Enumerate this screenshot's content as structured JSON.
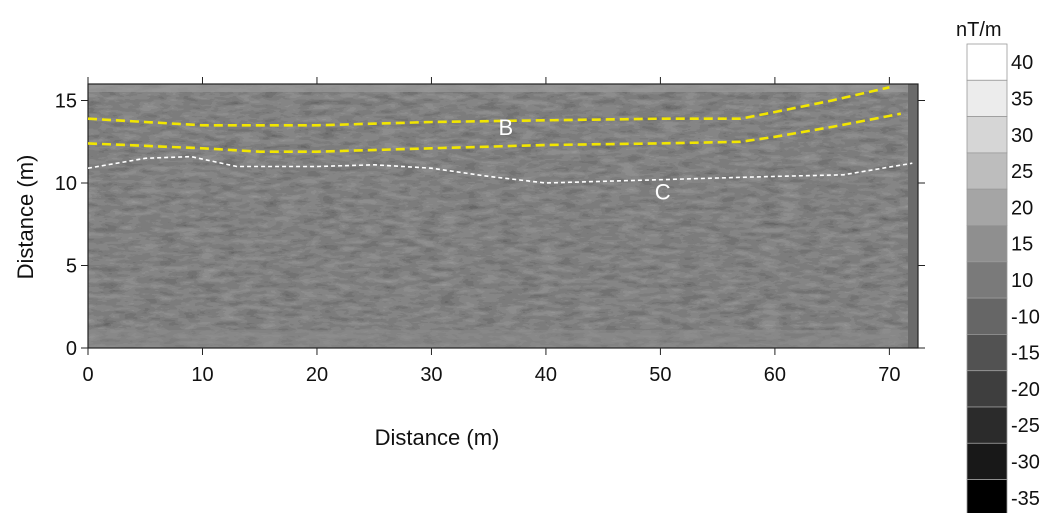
{
  "chart_data": {
    "type": "heatmap",
    "xlabel": "Distance (m)",
    "ylabel": "Distance (m)",
    "xlim": [
      0,
      72.5
    ],
    "ylim": [
      0,
      16
    ],
    "x_ticks": [
      "0",
      "10",
      "20",
      "30",
      "40",
      "50",
      "60",
      "70"
    ],
    "y_ticks": [
      "0",
      "5",
      "10",
      "15"
    ],
    "grid": false,
    "colorbar": {
      "unit": "nT/m",
      "labels": [
        "40",
        "35",
        "30",
        "25",
        "20",
        "15",
        "10",
        "-10",
        "-15",
        "-20",
        "-25",
        "-30",
        "-35"
      ],
      "colors": [
        "#ffffff",
        "#ececec",
        "#d6d6d6",
        "#bdbdbd",
        "#a5a5a5",
        "#8f8f8f",
        "#7a7a7a",
        "#666666",
        "#525252",
        "#3e3e3e",
        "#2b2b2b",
        "#181818",
        "#000000"
      ]
    },
    "annotations": [
      {
        "text": "B",
        "x": 36.5,
        "y": 12.9
      },
      {
        "text": "C",
        "x": 50.2,
        "y": 9.0
      }
    ],
    "interpreted_lines": [
      {
        "color": "#f2e600",
        "style": "dashed",
        "points": [
          [
            0,
            13.9
          ],
          [
            10,
            13.5
          ],
          [
            20,
            13.5
          ],
          [
            30,
            13.7
          ],
          [
            40,
            13.8
          ],
          [
            50,
            13.9
          ],
          [
            57,
            13.9
          ],
          [
            60,
            14.3
          ],
          [
            65,
            15.0
          ],
          [
            70,
            15.8
          ]
        ]
      },
      {
        "color": "#f2e600",
        "style": "dashed",
        "points": [
          [
            0,
            12.4
          ],
          [
            10,
            12.1
          ],
          [
            15,
            11.9
          ],
          [
            20,
            11.9
          ],
          [
            30,
            12.1
          ],
          [
            40,
            12.3
          ],
          [
            50,
            12.4
          ],
          [
            57,
            12.5
          ],
          [
            60,
            12.8
          ],
          [
            65,
            13.4
          ],
          [
            71,
            14.2
          ]
        ]
      },
      {
        "color": "#ffffff",
        "style": "dashed",
        "points": [
          [
            0,
            10.9
          ],
          [
            5,
            11.5
          ],
          [
            9,
            11.6
          ],
          [
            13,
            11.0
          ],
          [
            20,
            11.0
          ],
          [
            25,
            11.1
          ],
          [
            30,
            10.9
          ],
          [
            35,
            10.4
          ],
          [
            40,
            10.0
          ],
          [
            45,
            10.1
          ],
          [
            50,
            10.2
          ],
          [
            55,
            10.3
          ],
          [
            60,
            10.4
          ],
          [
            66,
            10.5
          ],
          [
            72,
            11.2
          ]
        ]
      }
    ]
  }
}
